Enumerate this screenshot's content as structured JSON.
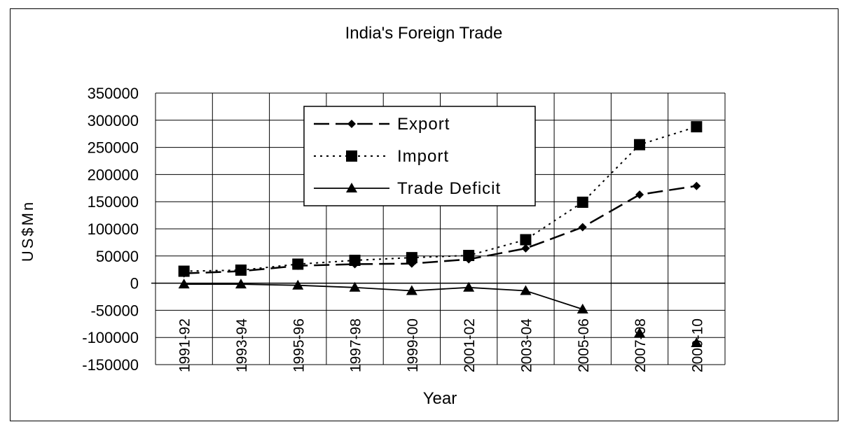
{
  "chart_data": {
    "type": "line",
    "title": "India's Foreign Trade",
    "xlabel": "Year",
    "ylabel": "US$Mn",
    "categories": [
      "1991-92",
      "1993-94",
      "1995-96",
      "1997-98",
      "1999-00",
      "2001-02",
      "2003-04",
      "2005-06",
      "2007-08",
      "2009-10"
    ],
    "ylim": [
      -150000,
      350000
    ],
    "yticks": [
      350000,
      300000,
      250000,
      200000,
      150000,
      100000,
      50000,
      0,
      -50000,
      -100000,
      -150000
    ],
    "grid": true,
    "legend_position": "top-center",
    "series": [
      {
        "name": "Export",
        "marker": "diamond",
        "line": "long-dash",
        "values": [
          18000,
          22000,
          32000,
          35000,
          36000,
          44000,
          64000,
          103000,
          163000,
          179000
        ]
      },
      {
        "name": "Import",
        "marker": "square",
        "line": "dotted",
        "values": [
          22000,
          24000,
          35000,
          42000,
          47000,
          51000,
          80000,
          149000,
          255000,
          288000
        ]
      },
      {
        "name": "Trade Deficit",
        "marker": "triangle",
        "line": "solid",
        "values": [
          -2000,
          -2000,
          -4000,
          -8000,
          -14000,
          -8000,
          -14000,
          -48000,
          -92000,
          -110000
        ]
      }
    ]
  }
}
